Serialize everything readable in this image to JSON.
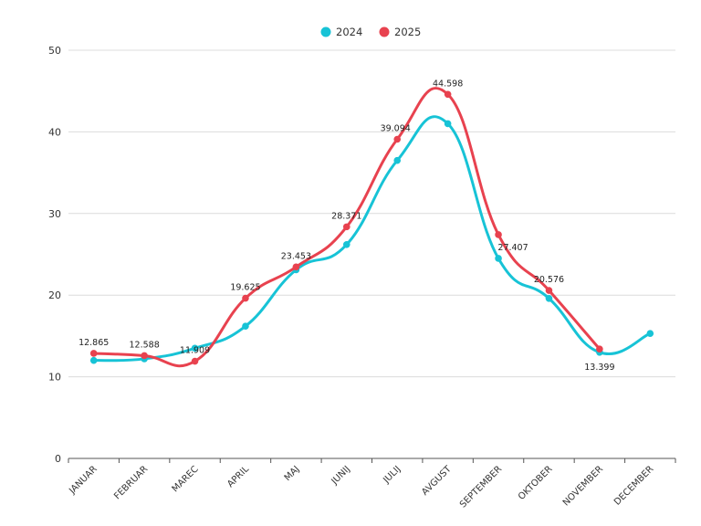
{
  "chart_data": {
    "type": "line",
    "smooth": true,
    "categories": [
      "JANUAR",
      "FEBRUAR",
      "MAREC",
      "APRIL",
      "MAJ",
      "JUNIJ",
      "JULIJ",
      "AVGUST",
      "SEPTEMBER",
      "OKTOBER",
      "NOVEMBER",
      "DECEMBER"
    ],
    "ylim": [
      0,
      50
    ],
    "yticks": [
      0,
      10,
      20,
      30,
      40,
      50
    ],
    "ytick_labels": [
      "0",
      "10",
      "20",
      "30",
      "40",
      "50"
    ],
    "grid": true,
    "legend_position": "top-center",
    "series": [
      {
        "name": "2024",
        "color": "#17c3d6",
        "values": [
          12.0,
          12.2,
          13.5,
          16.2,
          23.1,
          26.2,
          36.5,
          41.0,
          24.5,
          19.6,
          13.0,
          15.3
        ],
        "labels": [
          "",
          "",
          "",
          "",
          "",
          "",
          "",
          "",
          "",
          "",
          "",
          ""
        ]
      },
      {
        "name": "2025",
        "color": "#e8424f",
        "values": [
          12.865,
          12.588,
          11.909,
          19.625,
          23.453,
          28.371,
          39.094,
          44.598,
          27.407,
          20.576,
          13.399,
          null
        ],
        "labels": [
          "12.865",
          "12.588",
          "11.909",
          "19.625",
          "23.453",
          "28.371",
          "39.094",
          "44.598",
          "27.407",
          "20.576",
          "13.399",
          ""
        ]
      }
    ]
  }
}
